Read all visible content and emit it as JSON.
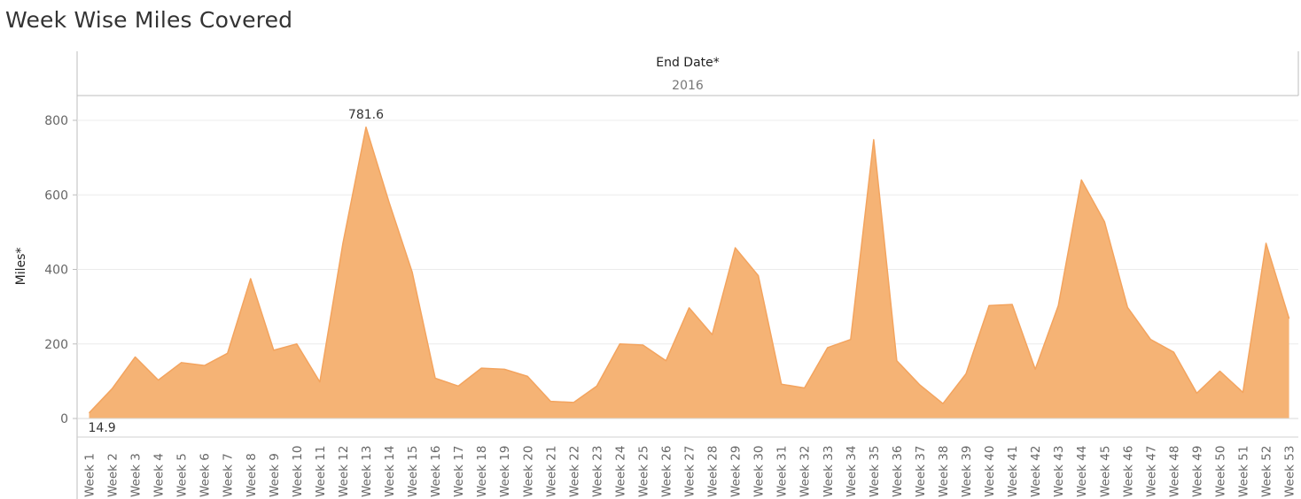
{
  "title": "Week Wise Miles Covered",
  "chart_data": {
    "type": "area",
    "title": "Week Wise Miles Covered",
    "column_header_label": "End Date*",
    "column_header_value": "2016",
    "ylabel": "Miles*",
    "xlabel": "",
    "ylim": [
      0,
      800
    ],
    "yticks": [
      0,
      200,
      400,
      600,
      800
    ],
    "grid": true,
    "color": "#f5b375",
    "line_color": "#f3a45f",
    "categories": [
      "Week 1",
      "Week 2",
      "Week 3",
      "Week 4",
      "Week 5",
      "Week 6",
      "Week 7",
      "Week 8",
      "Week 9",
      "Week 10",
      "Week 11",
      "Week 12",
      "Week 13",
      "Week 14",
      "Week 15",
      "Week 16",
      "Week 17",
      "Week 18",
      "Week 19",
      "Week 20",
      "Week 21",
      "Week 22",
      "Week 23",
      "Week 24",
      "Week 25",
      "Week 26",
      "Week 27",
      "Week 28",
      "Week 29",
      "Week 30",
      "Week 31",
      "Week 32",
      "Week 33",
      "Week 34",
      "Week 35",
      "Week 36",
      "Week 37",
      "Week 38",
      "Week 39",
      "Week 40",
      "Week 41",
      "Week 42",
      "Week 43",
      "Week 44",
      "Week 45",
      "Week 46",
      "Week 47",
      "Week 48",
      "Week 49",
      "Week 50",
      "Week 51",
      "Week 52",
      "Week 53"
    ],
    "values": [
      14.9,
      80,
      165,
      103,
      150,
      142,
      175,
      375,
      183,
      200,
      98,
      470,
      781.6,
      580,
      393,
      108,
      87,
      135,
      132,
      113,
      46,
      43,
      87,
      200,
      197,
      155,
      297,
      225,
      458,
      383,
      92,
      82,
      190,
      212,
      748,
      155,
      90,
      40,
      120,
      303,
      306,
      132,
      303,
      640,
      528,
      298,
      212,
      178,
      68,
      127,
      70,
      470,
      268
    ],
    "data_labels": [
      {
        "category": "Week 13",
        "text": "781.6"
      },
      {
        "category": "Week 1",
        "text": "14.9"
      }
    ]
  }
}
